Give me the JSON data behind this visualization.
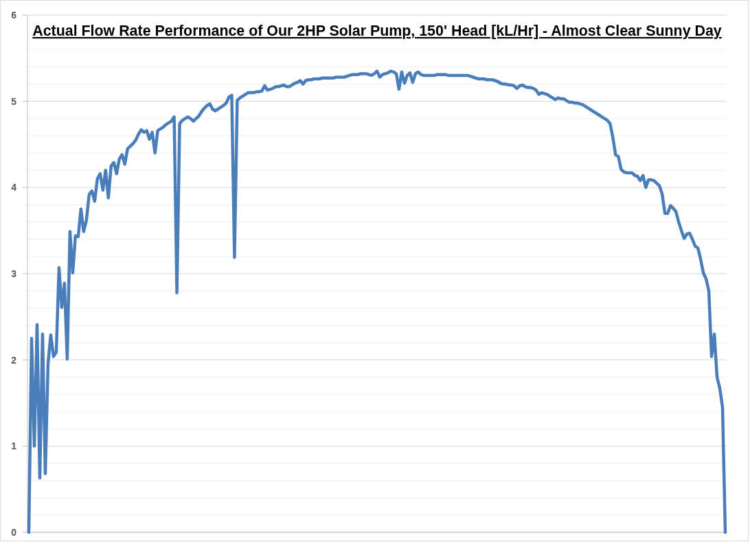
{
  "chart_data": {
    "type": "line",
    "title": "Actual Flow Rate Performance of Our 2HP Solar Pump, 150' Head [kL/Hr] - Almost Clear Sunny Day",
    "categories": [
      null,
      null,
      null,
      null,
      null,
      null,
      null,
      null,
      null,
      null,
      null,
      null,
      null,
      null,
      null,
      null,
      null,
      null,
      null,
      null,
      null,
      null,
      null,
      null,
      null,
      null,
      null,
      null,
      null,
      null,
      null,
      null,
      null,
      null,
      null,
      null,
      null,
      null,
      null,
      null,
      null,
      null,
      null,
      null,
      null,
      null,
      null,
      null,
      null,
      null,
      null,
      null,
      null,
      null,
      null,
      null,
      null,
      null,
      null,
      null,
      null,
      null,
      null,
      null,
      null,
      null,
      null,
      null,
      null,
      null,
      null,
      null,
      null,
      null,
      null,
      null,
      null,
      null,
      null,
      null,
      null,
      null,
      null,
      null,
      null,
      null,
      null,
      null,
      null,
      null,
      null,
      null,
      null,
      null,
      null,
      null,
      null,
      null,
      null,
      null,
      null,
      null,
      null,
      null,
      null,
      null,
      null,
      null,
      null,
      null,
      null,
      null,
      null,
      null,
      null,
      null,
      null,
      null,
      null,
      null,
      null,
      null,
      null,
      null,
      null,
      null,
      null,
      null,
      null,
      null,
      null,
      null,
      null,
      null,
      null,
      null,
      null,
      null,
      null,
      null,
      null,
      null,
      null,
      null,
      null,
      null,
      null,
      null,
      null,
      null,
      null,
      null,
      null,
      null,
      null,
      null,
      null,
      null,
      null,
      null,
      null,
      null,
      null,
      null,
      null,
      null,
      null,
      null,
      null,
      null,
      null,
      null,
      null,
      null,
      null,
      null,
      null,
      null,
      null,
      null,
      null,
      null,
      null,
      null,
      null,
      null,
      null,
      null,
      null,
      null,
      null,
      null,
      null,
      null,
      null,
      null,
      null,
      null,
      null,
      null,
      null,
      null,
      null,
      null,
      null,
      null,
      null,
      null,
      null,
      null,
      null,
      null,
      null,
      null,
      null,
      null,
      null,
      null,
      null,
      null,
      null,
      null,
      null,
      null,
      null,
      null,
      null,
      null,
      null,
      null,
      null,
      null,
      null,
      null,
      null,
      null,
      null,
      null,
      null,
      null,
      null,
      null,
      null,
      null,
      null,
      null,
      null,
      null,
      null,
      null,
      null,
      null,
      null,
      null,
      null
    ],
    "series": [
      {
        "color": "#4a7ebb",
        "values": [
          0,
          2.25,
          1.0,
          2.41,
          0.63,
          2.3,
          0.68,
          1.96,
          2.29,
          2.04,
          2.09,
          3.07,
          2.61,
          2.89,
          2.01,
          3.49,
          3.01,
          3.44,
          3.43,
          3.75,
          3.49,
          3.62,
          3.92,
          3.96,
          3.84,
          4.1,
          4.16,
          3.97,
          4.2,
          3.88,
          4.25,
          4.29,
          4.16,
          4.33,
          4.38,
          4.27,
          4.45,
          4.48,
          4.51,
          4.55,
          4.62,
          4.67,
          4.64,
          4.66,
          4.56,
          4.64,
          4.4,
          4.66,
          4.68,
          4.7,
          4.73,
          4.75,
          4.77,
          4.82,
          2.78,
          4.74,
          4.78,
          4.8,
          4.82,
          4.8,
          4.77,
          4.8,
          4.83,
          4.88,
          4.92,
          4.95,
          4.97,
          4.91,
          4.89,
          4.91,
          4.93,
          4.95,
          4.98,
          5.05,
          5.07,
          3.19,
          5.01,
          5.04,
          5.06,
          5.08,
          5.1,
          5.1,
          5.1,
          5.11,
          5.11,
          5.12,
          5.18,
          5.13,
          5.14,
          5.15,
          5.17,
          5.17,
          5.18,
          5.19,
          5.17,
          5.17,
          5.19,
          5.21,
          5.22,
          5.24,
          5.2,
          5.24,
          5.25,
          5.25,
          5.26,
          5.26,
          5.26,
          5.27,
          5.27,
          5.27,
          5.27,
          5.27,
          5.28,
          5.28,
          5.28,
          5.28,
          5.29,
          5.3,
          5.31,
          5.31,
          5.31,
          5.32,
          5.32,
          5.32,
          5.31,
          5.3,
          5.32,
          5.35,
          5.28,
          5.31,
          5.32,
          5.33,
          5.35,
          5.34,
          5.32,
          5.14,
          5.34,
          5.21,
          5.3,
          5.33,
          5.22,
          5.32,
          5.34,
          5.31,
          5.3,
          5.3,
          5.3,
          5.3,
          5.3,
          5.31,
          5.31,
          5.31,
          5.31,
          5.3,
          5.3,
          5.3,
          5.3,
          5.3,
          5.3,
          5.3,
          5.3,
          5.29,
          5.28,
          5.27,
          5.26,
          5.26,
          5.26,
          5.25,
          5.25,
          5.25,
          5.24,
          5.23,
          5.21,
          5.2,
          5.2,
          5.19,
          5.19,
          5.18,
          5.15,
          5.18,
          5.19,
          5.17,
          5.16,
          5.16,
          5.15,
          5.13,
          5.08,
          5.1,
          5.09,
          5.08,
          5.06,
          5.04,
          5.02,
          5.04,
          5.03,
          5.03,
          5.01,
          4.99,
          4.99,
          4.98,
          4.98,
          4.97,
          4.96,
          4.94,
          4.92,
          4.9,
          4.88,
          4.86,
          4.84,
          4.82,
          4.8,
          4.78,
          4.74,
          4.58,
          4.38,
          4.36,
          4.21,
          4.18,
          4.17,
          4.17,
          4.17,
          4.14,
          4.13,
          4.08,
          4.14,
          4.0,
          4.09,
          4.09,
          4.08,
          4.05,
          4.02,
          3.92,
          3.7,
          3.7,
          3.79,
          3.76,
          3.72,
          3.6,
          3.5,
          3.41,
          3.46,
          3.47,
          3.4,
          3.32,
          3.3,
          3.17,
          3.01,
          2.94,
          2.8,
          2.04,
          2.3,
          1.8,
          1.67,
          1.45,
          0
        ]
      }
    ],
    "ylim": [
      0,
      6
    ],
    "yticks": [
      0,
      {
        "value": 0.2,
        "label": null
      },
      {
        "value": 0.4,
        "label": null
      },
      {
        "value": 0.6,
        "label": null
      },
      {
        "value": 0.8,
        "label": null
      },
      1,
      {
        "value": 1.2,
        "label": null
      },
      {
        "value": 1.4,
        "label": null
      },
      {
        "value": 1.6,
        "label": null
      },
      {
        "value": 1.8,
        "label": null
      },
      2,
      {
        "value": 2.2,
        "label": null
      },
      {
        "value": 2.4,
        "label": null
      },
      {
        "value": 2.6,
        "label": null
      },
      {
        "value": 2.8,
        "label": null
      },
      3,
      {
        "value": 3.2,
        "label": null
      },
      {
        "value": 3.4,
        "label": null
      },
      {
        "value": 3.6,
        "label": null
      },
      {
        "value": 3.8,
        "label": null
      },
      4,
      {
        "value": 4.2,
        "label": null
      },
      {
        "value": 4.4,
        "label": null
      },
      {
        "value": 4.6,
        "label": null
      },
      {
        "value": 4.8,
        "label": null
      },
      5,
      {
        "value": 5.2,
        "label": null
      },
      {
        "value": 5.4,
        "label": null
      },
      {
        "value": 5.6,
        "label": null
      },
      {
        "value": 5.8,
        "label": null
      },
      6
    ],
    "grid": "y",
    "tick_labels": "y",
    "line_style": "solid"
  }
}
